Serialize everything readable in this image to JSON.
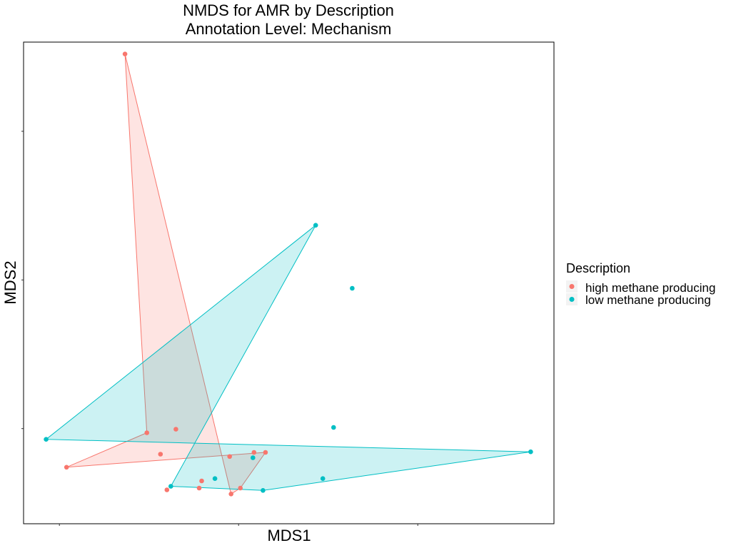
{
  "chart_data": {
    "type": "scatter",
    "title": "NMDS for AMR by Description",
    "subtitle": "Annotation Level: Mechanism",
    "xlabel": "MDS1",
    "ylabel": "MDS2",
    "xlim": [
      -0.3,
      1.18
    ],
    "ylim": [
      -0.16,
      0.65
    ],
    "x_ticks": [
      -0.2,
      0.3,
      0.8
    ],
    "y_ticks": [
      0.0,
      0.25,
      0.5
    ],
    "tick_labels_shown": false,
    "grid": false,
    "legend": {
      "title": "Description",
      "position": "right",
      "entries": [
        "high methane producing",
        "low methane producing"
      ]
    },
    "colors": {
      "high methane producing": "#F8766D",
      "low methane producing": "#00BFC4"
    },
    "series": [
      {
        "name": "high methane producing",
        "color": "#F8766D",
        "hull_order": [
          2,
          0,
          9,
          8,
          7,
          1
        ],
        "points": [
          {
            "x": -0.017,
            "y": 0.63
          },
          {
            "x": -0.18,
            "y": -0.065
          },
          {
            "x": 0.044,
            "y": -0.007
          },
          {
            "x": 0.125,
            "y": -0.001
          },
          {
            "x": 0.082,
            "y": -0.043
          },
          {
            "x": 0.275,
            "y": -0.047
          },
          {
            "x": 0.343,
            "y": -0.04
          },
          {
            "x": 0.375,
            "y": -0.04
          },
          {
            "x": 0.305,
            "y": -0.1
          },
          {
            "x": 0.279,
            "y": -0.11
          },
          {
            "x": 0.1,
            "y": -0.103
          },
          {
            "x": 0.19,
            "y": -0.1
          },
          {
            "x": 0.197,
            "y": -0.088
          }
        ]
      },
      {
        "name": "low methane producing",
        "color": "#00BFC4",
        "hull_order": [
          0,
          5,
          1,
          3,
          2
        ],
        "points": [
          {
            "x": 0.515,
            "y": 0.342
          },
          {
            "x": 1.115,
            "y": -0.039
          },
          {
            "x": 0.111,
            "y": -0.097
          },
          {
            "x": 0.368,
            "y": -0.104
          },
          {
            "x": 0.234,
            "y": -0.084
          },
          {
            "x": -0.237,
            "y": -0.018
          },
          {
            "x": 0.617,
            "y": 0.236
          },
          {
            "x": 0.565,
            "y": 0.002
          },
          {
            "x": 0.535,
            "y": -0.084
          },
          {
            "x": 0.34,
            "y": -0.049
          }
        ]
      }
    ]
  }
}
